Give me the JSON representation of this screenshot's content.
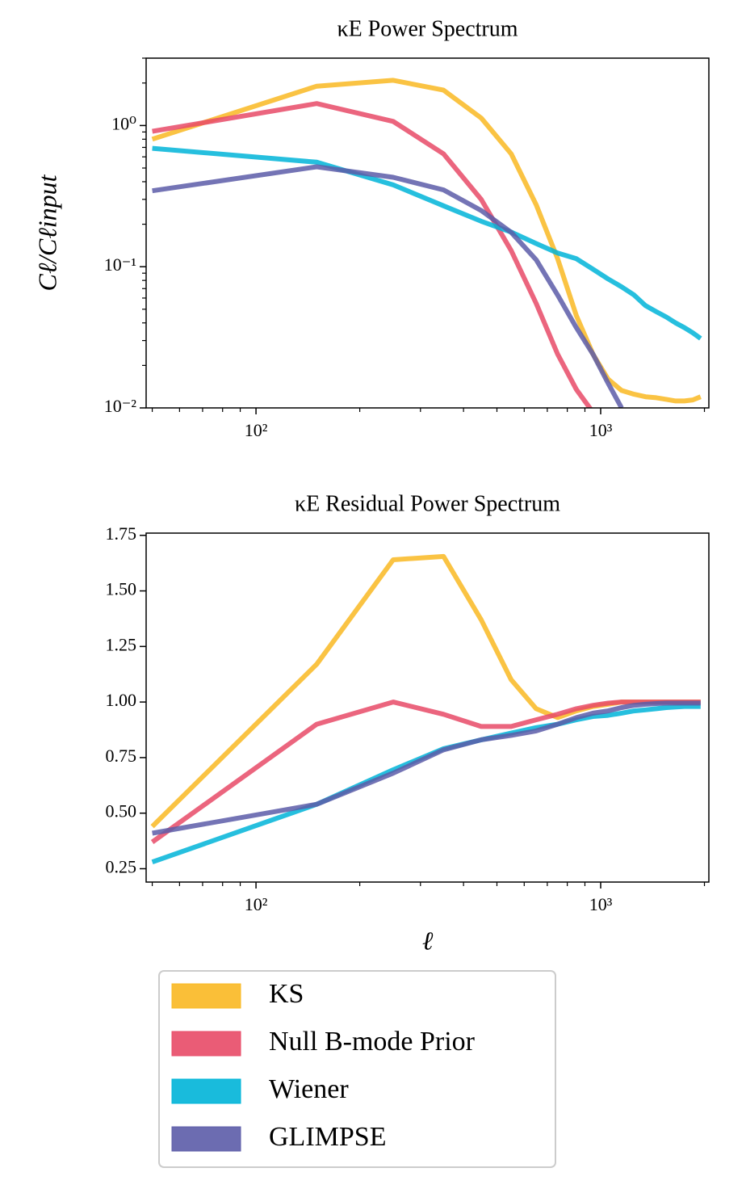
{
  "chart_data": [
    {
      "type": "line",
      "title": "κE Power Spectrum",
      "y_label": "Cℓ/Cℓinput",
      "xscale": "log",
      "yscale": "log",
      "xlim": [
        48,
        2060
      ],
      "ylim": [
        0.01,
        3
      ],
      "xticks": [
        {
          "value": 100,
          "label": "10²"
        },
        {
          "value": 1000,
          "label": "10³"
        }
      ],
      "xminorticks": [
        50,
        60,
        70,
        80,
        90,
        200,
        300,
        400,
        500,
        600,
        700,
        800,
        900,
        2000
      ],
      "yticks": [
        {
          "value": 0.01,
          "label": "10⁻²"
        },
        {
          "value": 0.1,
          "label": "10⁻¹"
        },
        {
          "value": 1,
          "label": "10⁰"
        }
      ],
      "yminorticks": [
        0.02,
        0.03,
        0.04,
        0.05,
        0.06,
        0.07,
        0.08,
        0.09,
        0.2,
        0.3,
        0.4,
        0.5,
        0.6,
        0.7,
        0.8,
        0.9,
        2,
        3
      ],
      "x": [
        50,
        150,
        250,
        350,
        450,
        550,
        650,
        750,
        850,
        950,
        1050,
        1150,
        1250,
        1350,
        1450,
        1550,
        1650,
        1750,
        1850,
        1950
      ],
      "series": [
        {
          "color": "#f9b822",
          "values": [
            0.8,
            1.9,
            2.09,
            1.78,
            1.13,
            0.63,
            0.275,
            0.114,
            0.045,
            0.024,
            0.016,
            0.0133,
            0.0125,
            0.012,
            0.0118,
            0.0115,
            0.0112,
            0.0112,
            0.0114,
            0.012
          ]
        },
        {
          "color": "#e84a67",
          "values": [
            0.91,
            1.43,
            1.07,
            0.63,
            0.3,
            0.13,
            0.055,
            0.024,
            0.0135,
            0.0093,
            null,
            null,
            null,
            null,
            null,
            null,
            null,
            null,
            null,
            null
          ]
        },
        {
          "color": "#00b4d8",
          "values": [
            0.69,
            0.55,
            0.38,
            0.27,
            0.21,
            0.176,
            0.146,
            0.125,
            0.114,
            0.096,
            0.082,
            0.072,
            0.063,
            0.053,
            0.048,
            0.044,
            0.04,
            0.037,
            0.034,
            0.031
          ]
        },
        {
          "color": "#5c5ca8",
          "values": [
            0.345,
            0.51,
            0.43,
            0.35,
            0.25,
            0.175,
            0.112,
            0.063,
            0.037,
            0.024,
            0.015,
            0.01,
            null,
            null,
            null,
            null,
            null,
            null,
            null,
            null
          ]
        }
      ]
    },
    {
      "type": "line",
      "title": "κE Residual Power Spectrum",
      "x_label": "ℓ",
      "xscale": "log",
      "xlim": [
        48,
        2060
      ],
      "ylim": [
        0.19,
        1.76
      ],
      "xticks": [
        {
          "value": 100,
          "label": "10²"
        },
        {
          "value": 1000,
          "label": "10³"
        }
      ],
      "xminorticks": [
        50,
        60,
        70,
        80,
        90,
        200,
        300,
        400,
        500,
        600,
        700,
        800,
        900,
        2000
      ],
      "yticks": [
        0.25,
        {
          "value": 0.5,
          "label": "0.50"
        },
        0.75,
        {
          "value": 1,
          "label": "1.00"
        },
        1.25,
        {
          "value": 1.5,
          "label": "1.50"
        },
        1.75
      ],
      "x": [
        50,
        150,
        250,
        350,
        450,
        550,
        650,
        750,
        850,
        950,
        1050,
        1150,
        1250,
        1350,
        1450,
        1550,
        1650,
        1750,
        1850,
        1950
      ],
      "series": [
        {
          "name": "KS",
          "color": "#f9b822",
          "values": [
            0.44,
            1.17,
            1.64,
            1.655,
            1.37,
            1.1,
            0.97,
            0.93,
            0.96,
            0.98,
            0.99,
            1.0,
            1.0,
            1.0,
            1.0,
            1.0,
            1.0,
            1.0,
            1.0,
            1.0
          ]
        },
        {
          "name": "Null B-mode Prior",
          "color": "#e84a67",
          "values": [
            0.37,
            0.9,
            1.0,
            0.945,
            0.89,
            0.89,
            0.92,
            0.945,
            0.97,
            0.985,
            0.995,
            1.0,
            1.0,
            1.0,
            1.0,
            1.0,
            1.0,
            1.0,
            1.0,
            1.0
          ]
        },
        {
          "name": "Wiener",
          "color": "#00b4d8",
          "values": [
            0.28,
            0.54,
            0.695,
            0.79,
            0.83,
            0.86,
            0.885,
            0.9,
            0.92,
            0.935,
            0.94,
            0.95,
            0.96,
            0.965,
            0.97,
            0.975,
            0.978,
            0.98,
            0.98,
            0.98
          ]
        },
        {
          "name": "GLIMPSE",
          "color": "#5c5ca8",
          "values": [
            0.41,
            0.54,
            0.68,
            0.785,
            0.83,
            0.85,
            0.87,
            0.9,
            0.93,
            0.95,
            0.96,
            0.975,
            0.985,
            0.99,
            0.993,
            0.995,
            0.995,
            0.995,
            0.995,
            0.995
          ]
        }
      ]
    }
  ]
}
